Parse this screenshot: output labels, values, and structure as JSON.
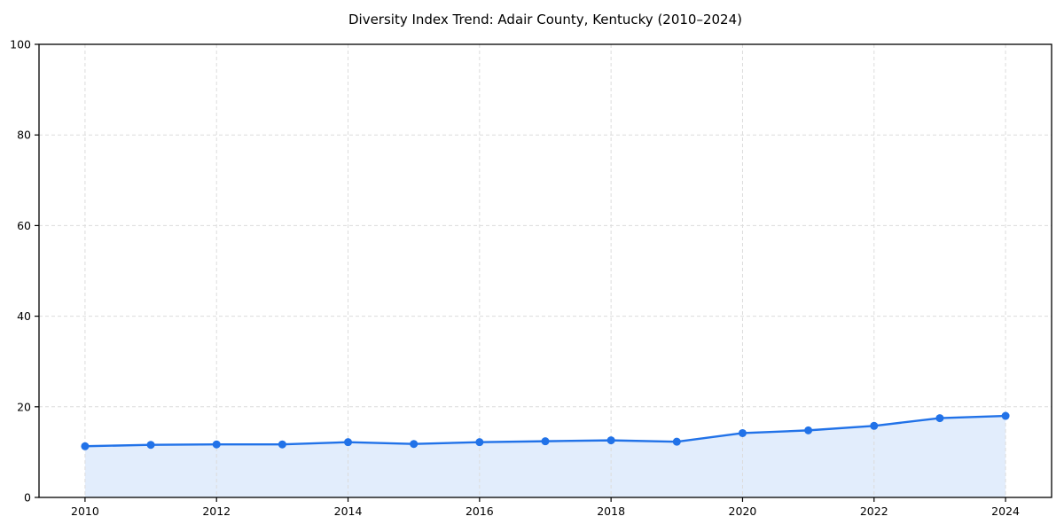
{
  "chart_data": {
    "type": "line",
    "title": "Diversity Index Trend: Adair County, Kentucky (2010–2024)",
    "xlabel": "",
    "ylabel": "",
    "x": [
      2010,
      2011,
      2012,
      2013,
      2014,
      2015,
      2016,
      2017,
      2018,
      2019,
      2020,
      2021,
      2022,
      2023,
      2024
    ],
    "series": [
      {
        "name": "Diversity Index",
        "values": [
          11.3,
          11.6,
          11.7,
          11.7,
          12.2,
          11.8,
          12.2,
          12.4,
          12.6,
          12.3,
          14.2,
          14.8,
          15.8,
          17.5,
          18.0
        ]
      }
    ],
    "xlim": [
      2009.3,
      2024.7
    ],
    "ylim": [
      0,
      100
    ],
    "x_ticks": [
      2010,
      2012,
      2014,
      2016,
      2018,
      2020,
      2022,
      2024
    ],
    "y_ticks": [
      0,
      20,
      40,
      60,
      80,
      100
    ],
    "grid": "dashed",
    "legend_position": "none",
    "line_color": "#2172e8",
    "marker_color": "#2172e8",
    "fill_color": "rgba(33, 114, 232, 0.13)",
    "grid_color": "#dcdcdc",
    "axis_color": "#000000",
    "tick_label_color": "#000000",
    "area_fill": true,
    "marker": "circle"
  }
}
